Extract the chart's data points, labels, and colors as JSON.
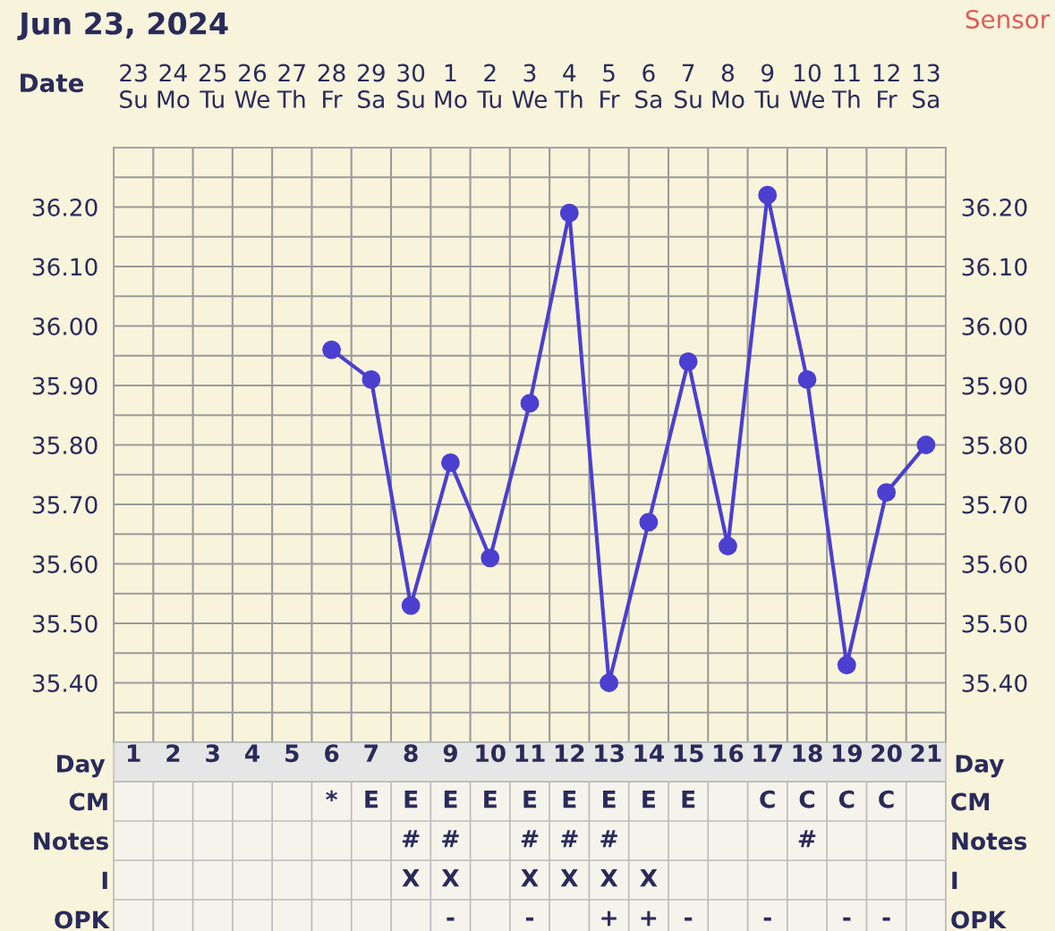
{
  "chart_data": [
    {
      "type": "line",
      "title": "Jun 23, 2024",
      "xlabel": "Date",
      "annotations": [
        "Sensor"
      ],
      "categories": [
        "23\nSu",
        "24\nMo",
        "25\nTu",
        "26\nWe",
        "27\nTh",
        "28\nFr",
        "29\nSa",
        "30\nSu",
        "1\nMo",
        "2\nTu",
        "3\nWe",
        "4\nTh",
        "5\nFr",
        "6\nSa",
        "7\nSu",
        "8\nMo",
        "9\nTu",
        "10\nWe",
        "11\nTh",
        "12\nFr",
        "13\nSa"
      ],
      "series": [
        {
          "color": "#4b3fcf",
          "values": [
            null,
            null,
            null,
            null,
            null,
            35.96,
            35.91,
            35.53,
            35.77,
            35.61,
            35.87,
            36.19,
            35.4,
            35.67,
            35.94,
            35.63,
            36.22,
            35.91,
            35.43,
            35.72,
            35.8
          ]
        }
      ],
      "ylim": [
        35.3,
        36.3
      ],
      "yticks": [
        {
          "value": 35.3,
          "label": null
        },
        {
          "value": 35.35,
          "label": null
        },
        {
          "value": 35.4,
          "label": "35.40"
        },
        {
          "value": 35.45,
          "label": null
        },
        {
          "value": 35.5,
          "label": "35.50"
        },
        {
          "value": 35.55,
          "label": null
        },
        {
          "value": 35.6,
          "label": "35.60"
        },
        {
          "value": 35.65,
          "label": null
        },
        {
          "value": 35.7,
          "label": "35.70"
        },
        {
          "value": 35.75,
          "label": null
        },
        {
          "value": 35.8,
          "label": "35.80"
        },
        {
          "value": 35.85,
          "label": null
        },
        {
          "value": 35.9,
          "label": "35.90"
        },
        {
          "value": 35.95,
          "label": null
        },
        {
          "value": 36.0,
          "label": "36.00"
        },
        {
          "value": 36.05,
          "label": null
        },
        {
          "value": 36.1,
          "label": "36.10"
        },
        {
          "value": 36.15,
          "label": null
        },
        {
          "value": 36.2,
          "label": "36.20"
        },
        {
          "value": 36.25,
          "label": null
        },
        {
          "value": 36.3,
          "label": null
        }
      ],
      "y2lim": [
        35.3,
        36.3
      ],
      "y2ticks": [
        {
          "value": 35.4,
          "label": "35.40"
        },
        {
          "value": 35.5,
          "label": "35.50"
        },
        {
          "value": 35.6,
          "label": "35.60"
        },
        {
          "value": 35.7,
          "label": "35.70"
        },
        {
          "value": 35.8,
          "label": "35.80"
        },
        {
          "value": 35.9,
          "label": "35.90"
        },
        {
          "value": 36.0,
          "label": "36.00"
        },
        {
          "value": 36.1,
          "label": "36.10"
        },
        {
          "value": 36.2,
          "label": "36.20"
        }
      ],
      "grid": true,
      "marker": "circle",
      "line_style": "solid"
    },
    {
      "type": "heatmap",
      "xlabel": "Day",
      "categories": [
        "1",
        "2",
        "3",
        "4",
        "5",
        "6",
        "7",
        "8",
        "9",
        "10",
        "11",
        "12",
        "13",
        "14",
        "15",
        "16",
        "17",
        "18",
        "19",
        "20",
        "21"
      ],
      "y_categories": [
        "CM",
        "Notes",
        "I",
        "OPK"
      ],
      "y2_categories": [
        "CM",
        "Notes",
        "I",
        "OPK"
      ],
      "cells": [
        [
          null,
          null,
          null,
          null,
          null,
          null,
          null,
          null,
          null,
          null,
          null,
          null,
          null,
          null,
          null,
          null,
          null,
          null,
          null,
          null,
          null
        ],
        [
          null,
          null,
          null,
          null,
          null,
          null,
          null,
          null,
          null,
          null,
          null,
          null,
          null,
          null,
          null,
          null,
          null,
          null,
          null,
          null,
          null
        ],
        [
          null,
          null,
          null,
          null,
          null,
          null,
          null,
          null,
          null,
          null,
          null,
          null,
          null,
          null,
          null,
          null,
          null,
          null,
          null,
          null,
          null
        ],
        [
          null,
          null,
          null,
          null,
          null,
          null,
          null,
          null,
          null,
          null,
          null,
          null,
          null,
          null,
          null,
          null,
          null,
          null,
          null,
          null,
          null
        ]
      ],
      "cell_labels": [
        [
          null,
          null,
          null,
          null,
          null,
          "*",
          "E",
          "E",
          "E",
          "E",
          "E",
          "E",
          "E",
          "E",
          "E",
          null,
          "C",
          "C",
          "C",
          "C",
          null
        ],
        [
          null,
          null,
          null,
          null,
          null,
          null,
          null,
          "#",
          "#",
          null,
          "#",
          "#",
          "#",
          null,
          null,
          null,
          null,
          "#",
          null,
          null,
          null
        ],
        [
          null,
          null,
          null,
          null,
          null,
          null,
          null,
          "X",
          "X",
          null,
          "X",
          "X",
          "X",
          "X",
          null,
          null,
          null,
          null,
          null,
          null,
          null
        ],
        [
          null,
          null,
          null,
          null,
          null,
          null,
          null,
          null,
          "-",
          null,
          "-",
          null,
          "+",
          "+",
          "-",
          null,
          "-",
          null,
          "-",
          "-",
          null
        ]
      ],
      "grid": true
    }
  ]
}
